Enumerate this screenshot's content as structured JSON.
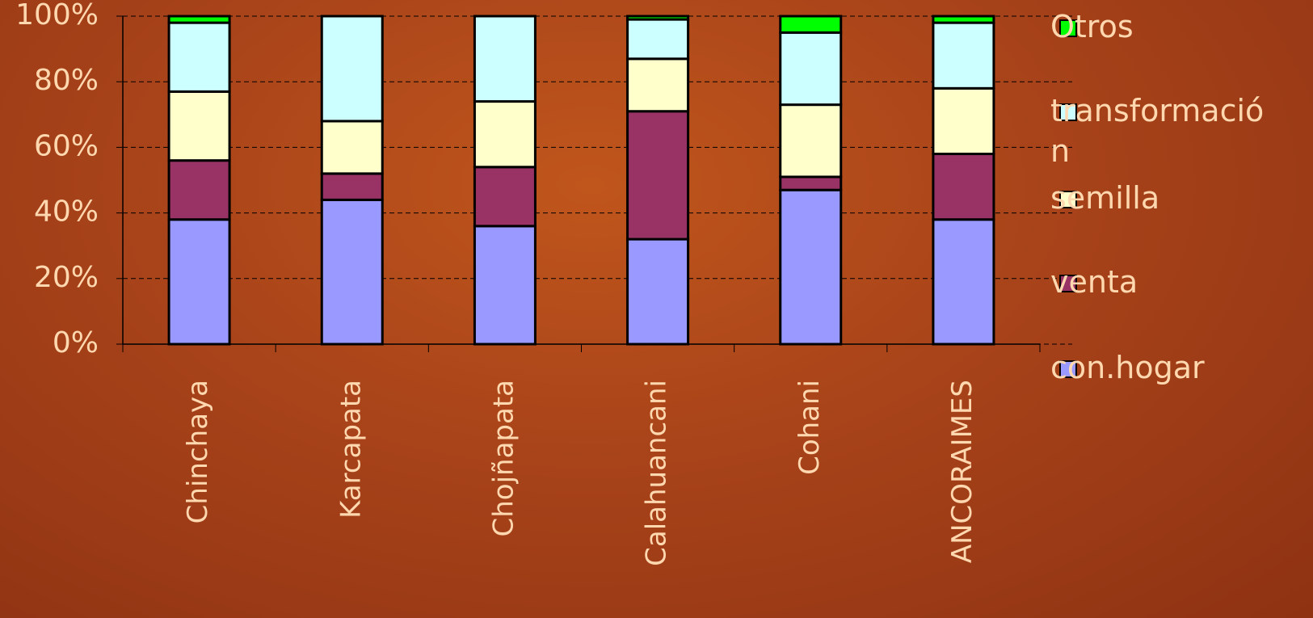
{
  "chart_data": {
    "type": "stacked_bar",
    "categories": [
      "Chinchaya",
      "Karcapata",
      "Chojñapata",
      "Calahuancani",
      "Cohani",
      "ANCORAIMES"
    ],
    "series": [
      {
        "name": "con.hogar",
        "color": "#9999ff",
        "values": [
          38,
          44,
          36,
          32,
          47,
          38
        ]
      },
      {
        "name": "venta",
        "color": "#993366",
        "values": [
          18,
          8,
          18,
          39,
          4,
          20
        ]
      },
      {
        "name": "semilla",
        "color": "#ffffcc",
        "values": [
          21,
          16,
          20,
          16,
          22,
          20
        ]
      },
      {
        "name": "transformación",
        "color": "#ccffff",
        "values": [
          21,
          32,
          26,
          12,
          22,
          20
        ]
      },
      {
        "name": "Otros",
        "color": "#00ff00",
        "values": [
          2,
          0,
          0,
          1,
          5,
          2
        ]
      }
    ],
    "ylim": [
      0,
      100
    ],
    "yticks": [
      {
        "value": 0,
        "label": "0%"
      },
      {
        "value": 20,
        "label": "20%"
      },
      {
        "value": 40,
        "label": "40%"
      },
      {
        "value": 60,
        "label": "60%"
      },
      {
        "value": 80,
        "label": "80%"
      },
      {
        "value": 100,
        "label": "100%"
      }
    ],
    "grid": true,
    "legend": "right"
  }
}
